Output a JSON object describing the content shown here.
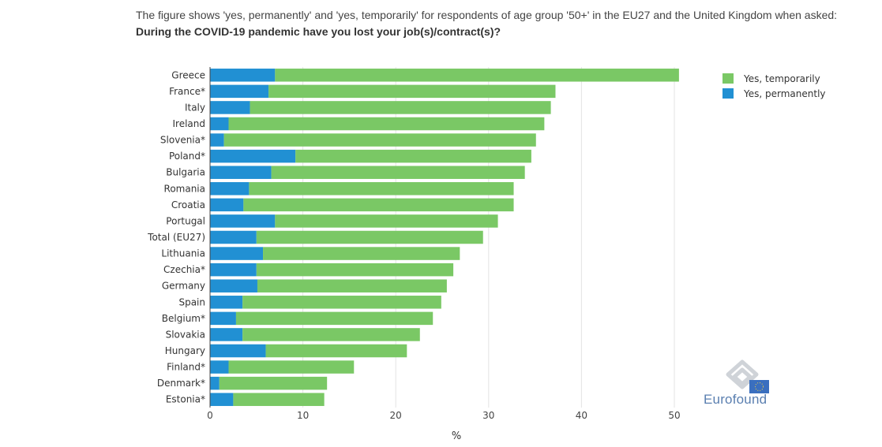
{
  "header": {
    "caption": "The figure shows 'yes, permanently' and 'yes, temporarily' for respondents of age group '50+' in the EU27 and the United Kingdom when asked:",
    "question": "During the COVID-19 pandemic have you lost your job(s)/contract(s)?"
  },
  "logo": {
    "text": "Eurofound",
    "icon": "eurofound-logo-icon"
  },
  "chart_data": {
    "type": "bar",
    "orientation": "horizontal",
    "stacked": true,
    "categories": [
      "Greece",
      "France*",
      "Italy",
      "Ireland",
      "Slovenia*",
      "Poland*",
      "Bulgaria",
      "Romania",
      "Croatia",
      "Portugal",
      "Total (EU27)",
      "Lithuania",
      "Czechia*",
      "Germany",
      "Spain",
      "Belgium*",
      "Slovakia",
      "Hungary",
      "Finland*",
      "Denmark*",
      "Estonia*"
    ],
    "series": [
      {
        "name": "Yes, permanently",
        "color": "#2190d3",
        "values": [
          7.0,
          6.3,
          4.3,
          2.0,
          1.5,
          9.2,
          6.6,
          4.2,
          3.6,
          7.0,
          5.0,
          5.7,
          5.0,
          5.1,
          3.5,
          2.8,
          3.5,
          6.0,
          2.0,
          1.0,
          2.5
        ]
      },
      {
        "name": "Yes, temporarily",
        "color": "#7ac865",
        "values": [
          43.5,
          30.9,
          32.4,
          34.0,
          33.6,
          25.4,
          27.3,
          28.5,
          29.1,
          24.0,
          24.4,
          21.2,
          21.2,
          20.4,
          21.4,
          21.2,
          19.1,
          15.2,
          13.5,
          11.6,
          9.8
        ]
      }
    ],
    "xlabel": "%",
    "xlim": [
      0,
      52
    ],
    "xticks": [
      0,
      10,
      20,
      30,
      40,
      50
    ],
    "legend": {
      "position": "top-right",
      "entries": [
        "Yes, temporarily",
        "Yes, permanently"
      ]
    },
    "grid": true
  }
}
